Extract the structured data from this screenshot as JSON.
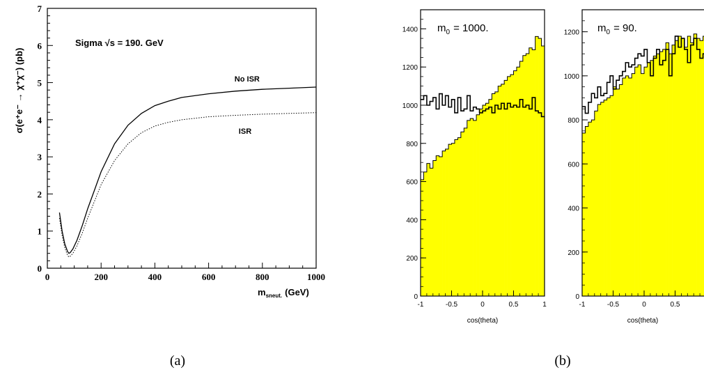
{
  "panel_labels": {
    "a": "(a)",
    "b": "(b)"
  },
  "chart_data": [
    {
      "type": "line",
      "title": "Sigma  √s = 190. GeV",
      "xlabel": "m_sneut. (GeV)",
      "xlabel_main": "m",
      "xlabel_sub": "sneut.",
      "xlabel_unit": "(GeV)",
      "ylabel": "σ(e⁺e⁻ → χ⁺χ⁻) (pb)",
      "xlim": [
        0,
        1000
      ],
      "ylim": [
        0,
        7
      ],
      "xticks": [
        "0",
        "200",
        "400",
        "600",
        "800",
        "1000"
      ],
      "yticks": [
        "0",
        "1",
        "2",
        "3",
        "4",
        "5",
        "6",
        "7"
      ],
      "grid": false,
      "series": [
        {
          "name": "No ISR",
          "style": "solid",
          "x": [
            45,
            55,
            65,
            75,
            80,
            85,
            95,
            110,
            130,
            150,
            175,
            200,
            250,
            300,
            350,
            400,
            450,
            500,
            600,
            700,
            800,
            900,
            1000
          ],
          "y": [
            1.5,
            1.0,
            0.65,
            0.45,
            0.4,
            0.42,
            0.52,
            0.75,
            1.15,
            1.6,
            2.1,
            2.6,
            3.35,
            3.85,
            4.17,
            4.38,
            4.5,
            4.6,
            4.7,
            4.77,
            4.82,
            4.85,
            4.88
          ]
        },
        {
          "name": "ISR",
          "style": "dotted",
          "x": [
            45,
            55,
            65,
            75,
            80,
            85,
            95,
            110,
            130,
            150,
            175,
            200,
            250,
            300,
            350,
            400,
            450,
            500,
            600,
            700,
            800,
            900,
            1000
          ],
          "y": [
            1.35,
            0.88,
            0.55,
            0.35,
            0.3,
            0.32,
            0.4,
            0.6,
            0.95,
            1.35,
            1.8,
            2.25,
            2.9,
            3.35,
            3.65,
            3.83,
            3.93,
            4.0,
            4.08,
            4.12,
            4.15,
            4.17,
            4.19
          ]
        }
      ],
      "annotations": [
        {
          "text": "No ISR",
          "x": 800,
          "y": 5.1
        },
        {
          "text": "ISR",
          "x": 800,
          "y": 3.7
        }
      ]
    },
    {
      "type": "bar",
      "annotation_main": "m",
      "annotation_sub": "0",
      "annotation_value": "= 1000.",
      "xlabel": "cos(theta)",
      "xlim": [
        -1,
        1
      ],
      "ylim": [
        0,
        1500
      ],
      "xticks": [
        "-1",
        "-0.5",
        "0",
        "0.5",
        "1"
      ],
      "yticks": [
        "0",
        "200",
        "400",
        "600",
        "800",
        "1000",
        "1200",
        "1400"
      ],
      "bins": 40,
      "series": [
        {
          "name": "",
          "style": "filled-yellow",
          "values": [
            610,
            650,
            695,
            670,
            710,
            735,
            730,
            760,
            770,
            795,
            800,
            820,
            830,
            860,
            880,
            920,
            930,
            920,
            950,
            980,
            1000,
            1010,
            1030,
            1060,
            1070,
            1100,
            1110,
            1130,
            1150,
            1160,
            1180,
            1200,
            1230,
            1260,
            1270,
            1300,
            1290,
            1360,
            1350,
            1310
          ]
        },
        {
          "name": "",
          "style": "outline",
          "values": [
            1030,
            1050,
            1000,
            1020,
            1040,
            980,
            1060,
            1000,
            1050,
            990,
            1030,
            960,
            1040,
            970,
            980,
            1050,
            970,
            990,
            980,
            960,
            970,
            980,
            990,
            960,
            1000,
            980,
            1010,
            980,
            1010,
            990,
            1000,
            990,
            1030,
            990,
            1000,
            980,
            1040,
            970,
            960,
            940
          ]
        }
      ]
    },
    {
      "type": "bar",
      "annotation_main": "m",
      "annotation_sub": "0",
      "annotation_value": "= 90.",
      "xlabel": "cos(theta)",
      "xlim": [
        -1,
        1
      ],
      "ylim": [
        0,
        1300
      ],
      "xticks": [
        "-1",
        "-0.5",
        "0",
        "0.5"
      ],
      "yticks": [
        "0",
        "200",
        "400",
        "600",
        "800",
        "1000",
        "1200"
      ],
      "bins": 40,
      "series": [
        {
          "name": "",
          "style": "filled-yellow",
          "values": [
            740,
            770,
            790,
            800,
            840,
            870,
            880,
            890,
            900,
            910,
            950,
            940,
            960,
            990,
            1000,
            990,
            1010,
            1040,
            1050,
            1010,
            1040,
            1060,
            1070,
            1090,
            1100,
            1110,
            1120,
            1150,
            1100,
            1140,
            1160,
            1180,
            1170,
            1130,
            1180,
            1150,
            1190,
            1170,
            1160,
            1180
          ]
        },
        {
          "name": "",
          "style": "outline",
          "values": [
            860,
            830,
            880,
            920,
            900,
            950,
            910,
            920,
            970,
            1000,
            940,
            980,
            1000,
            1020,
            1060,
            1040,
            1050,
            1080,
            1100,
            1090,
            1120,
            1060,
            1000,
            1080,
            1120,
            1050,
            1070,
            1120,
            1000,
            1100,
            1180,
            1130,
            1170,
            1120,
            1060,
            1140,
            1170,
            1120,
            1080,
            1100
          ]
        }
      ]
    }
  ]
}
